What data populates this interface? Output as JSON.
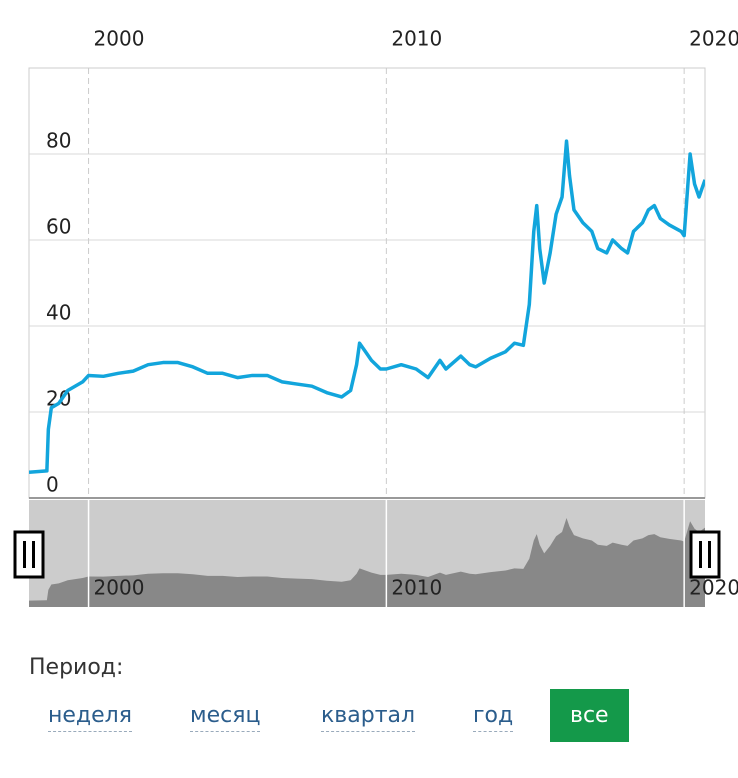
{
  "chart_data": {
    "type": "line",
    "x": [
      1998.0,
      1998.6,
      1998.65,
      1998.75,
      1999.0,
      1999.3,
      1999.8,
      2000.0,
      2000.5,
      2001.0,
      2001.5,
      2002.0,
      2002.5,
      2003.0,
      2003.5,
      2004.0,
      2004.5,
      2005.0,
      2005.5,
      2006.0,
      2006.5,
      2007.0,
      2007.5,
      2008.0,
      2008.5,
      2008.8,
      2009.0,
      2009.1,
      2009.3,
      2009.5,
      2009.8,
      2010.0,
      2010.5,
      2011.0,
      2011.4,
      2011.8,
      2012.0,
      2012.5,
      2012.8,
      2013.0,
      2013.5,
      2014.0,
      2014.3,
      2014.6,
      2014.8,
      2014.95,
      2015.05,
      2015.15,
      2015.3,
      2015.5,
      2015.7,
      2015.9,
      2016.05,
      2016.15,
      2016.3,
      2016.6,
      2016.9,
      2017.1,
      2017.4,
      2017.6,
      2017.9,
      2018.1,
      2018.3,
      2018.6,
      2018.8,
      2019.0,
      2019.2,
      2019.5,
      2019.9,
      2020.0,
      2020.2,
      2020.35,
      2020.5,
      2020.7
    ],
    "series": [
      {
        "color": "#12a5dc",
        "values": [
          6,
          6.3,
          16,
          21,
          22,
          25,
          27,
          28.5,
          28.3,
          29,
          29.5,
          31,
          31.5,
          31.5,
          30.5,
          29,
          29,
          28,
          28.5,
          28.5,
          27,
          26.5,
          26,
          24.5,
          23.5,
          25,
          31,
          36,
          34,
          32,
          30,
          30,
          31,
          30,
          28,
          32,
          30,
          33,
          31,
          30.5,
          32.5,
          34,
          36,
          35.5,
          45,
          62,
          68,
          58,
          50,
          57,
          66,
          70,
          83,
          75,
          67,
          64,
          62,
          58,
          57,
          60,
          58,
          57,
          62,
          64,
          67,
          68,
          65,
          63.5,
          62,
          61,
          80,
          73,
          70,
          74
        ]
      }
    ],
    "xlim": [
      1998.0,
      2020.7
    ],
    "ylim": [
      0,
      100
    ],
    "xticks": [
      2000,
      2010,
      2020
    ],
    "yticks": [
      0,
      20,
      40,
      60,
      80
    ],
    "grid": true
  },
  "period": {
    "label": "Период:",
    "options": [
      "неделя",
      "месяц",
      "квартал",
      "год",
      "все"
    ],
    "selected": 4
  }
}
